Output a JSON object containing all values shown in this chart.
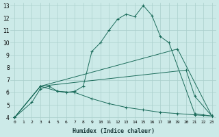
{
  "xlabel": "Humidex (Indice chaleur)",
  "bg_color": "#cceae8",
  "grid_color": "#aacfcc",
  "line_color": "#1a6b5a",
  "xlim": [
    -0.5,
    23.5
  ],
  "ylim": [
    3.8,
    13.2
  ],
  "xticks": [
    0,
    1,
    2,
    3,
    4,
    5,
    6,
    7,
    8,
    9,
    10,
    11,
    12,
    13,
    14,
    15,
    16,
    17,
    18,
    19,
    20,
    21,
    22,
    23
  ],
  "yticks": [
    4,
    5,
    6,
    7,
    8,
    9,
    10,
    11,
    12,
    13
  ],
  "lines": [
    {
      "x": [
        0,
        2,
        3,
        4,
        5,
        6,
        7,
        8,
        9,
        10,
        11,
        12,
        13,
        14,
        15,
        16,
        17,
        18,
        21,
        22,
        23
      ],
      "y": [
        4,
        5.2,
        6.3,
        6.5,
        6.1,
        6.0,
        6.1,
        6.5,
        9.3,
        10.0,
        11.0,
        11.9,
        12.3,
        12.1,
        13.0,
        12.2,
        10.5,
        10.0,
        4.3,
        4.2,
        4.1
      ]
    },
    {
      "x": [
        0,
        3,
        19,
        23
      ],
      "y": [
        4,
        6.5,
        9.5,
        4.1
      ]
    },
    {
      "x": [
        0,
        3,
        20,
        21,
        23
      ],
      "y": [
        4,
        6.5,
        7.8,
        5.7,
        4.1
      ]
    },
    {
      "x": [
        0,
        3,
        5,
        7,
        9,
        11,
        13,
        15,
        17,
        19,
        21,
        23
      ],
      "y": [
        4,
        6.5,
        6.1,
        6.0,
        5.5,
        5.1,
        4.8,
        4.6,
        4.4,
        4.3,
        4.2,
        4.1
      ]
    }
  ]
}
